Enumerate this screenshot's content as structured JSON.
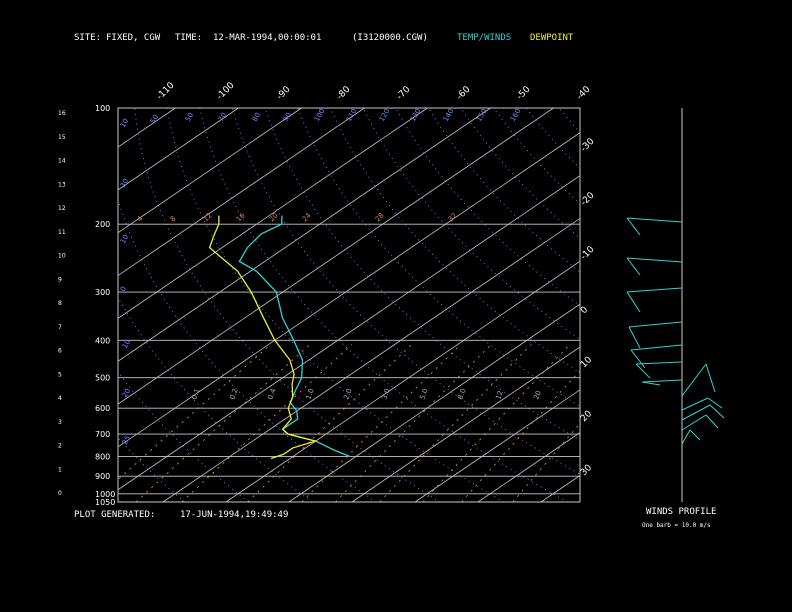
{
  "header": {
    "site_label": "SITE:",
    "site_value": "FIXED, CGW",
    "time_label": "TIME:",
    "time_value": "12-MAR-1994,00:00:01",
    "file": "(I3120000.CGW)",
    "legend_temp": "TEMP/WINDS",
    "legend_dew": "DEWPOINT"
  },
  "footer": {
    "generated_label": "PLOT GENERATED:",
    "generated_value": "17-JUN-1994,19:49:49"
  },
  "winds": {
    "title": "WINDS PROFILE",
    "note": "One barb = 10.0 m/s"
  },
  "colors": {
    "temp": "#2fd3d3",
    "dewpoint": "#f0f030",
    "grid": "#c8c8c8",
    "dry_adiabat": "#6a8cff",
    "mixing_ratio": "#d8805a"
  },
  "chart_data": {
    "type": "line",
    "subtype": "skew-t log-p diagram",
    "pressure_ticks": [
      "100",
      "200",
      "300",
      "400",
      "500",
      "600",
      "700",
      "800",
      "900",
      "1000",
      "1050"
    ],
    "pressure_values": [
      100,
      200,
      300,
      400,
      500,
      600,
      700,
      800,
      900,
      1000,
      1050
    ],
    "height_ticks": [
      "16",
      "15",
      "14",
      "13",
      "12",
      "11",
      "10",
      "9",
      "8",
      "7",
      "6",
      "5",
      "4",
      "3",
      "2",
      "1",
      "0"
    ],
    "temp_top_ticks": [
      "-110",
      "-100",
      "-90",
      "-80",
      "-70",
      "-60",
      "-50",
      "-40"
    ],
    "temp_side_ticks": [
      "-30",
      "-20",
      "-10",
      "0",
      "10",
      "20",
      "30"
    ],
    "dry_adiabat_labels": [
      "10",
      "50",
      "50",
      "70",
      "80",
      "90",
      "100",
      "110",
      "120",
      "130",
      "140",
      "150",
      "160",
      "30",
      "10",
      "0",
      "10",
      "20",
      "25"
    ],
    "mixing_ratio_labels": [
      "0.1",
      "0.2",
      "0.4",
      "1.0",
      "2.0",
      "3.0",
      "5.0",
      "8.0",
      "12",
      "20"
    ],
    "top_row_labels": [
      "4",
      "8",
      "12",
      "16",
      "20",
      "24",
      "28",
      "32"
    ],
    "temperature": [
      {
        "p": 800,
        "t": -11
      },
      {
        "p": 770,
        "t": -15
      },
      {
        "p": 730,
        "t": -20
      },
      {
        "p": 700,
        "t": -26
      },
      {
        "p": 680,
        "t": -28
      },
      {
        "p": 640,
        "t": -28
      },
      {
        "p": 610,
        "t": -30
      },
      {
        "p": 580,
        "t": -33
      },
      {
        "p": 540,
        "t": -35
      },
      {
        "p": 500,
        "t": -37
      },
      {
        "p": 450,
        "t": -41
      },
      {
        "p": 400,
        "t": -47
      },
      {
        "p": 350,
        "t": -54
      },
      {
        "p": 300,
        "t": -61
      },
      {
        "p": 265,
        "t": -69
      },
      {
        "p": 250,
        "t": -74
      },
      {
        "p": 230,
        "t": -76
      },
      {
        "p": 212,
        "t": -77
      },
      {
        "p": 200,
        "t": -76
      },
      {
        "p": 190,
        "t": -78
      }
    ],
    "dewpoint": [
      {
        "p": 810,
        "t": -23
      },
      {
        "p": 790,
        "t": -22
      },
      {
        "p": 760,
        "t": -22
      },
      {
        "p": 730,
        "t": -20
      },
      {
        "p": 700,
        "t": -26
      },
      {
        "p": 680,
        "t": -28
      },
      {
        "p": 640,
        "t": -29
      },
      {
        "p": 600,
        "t": -32
      },
      {
        "p": 560,
        "t": -34
      },
      {
        "p": 520,
        "t": -37
      },
      {
        "p": 490,
        "t": -39
      },
      {
        "p": 450,
        "t": -43
      },
      {
        "p": 400,
        "t": -50
      },
      {
        "p": 350,
        "t": -57
      },
      {
        "p": 300,
        "t": -65
      },
      {
        "p": 265,
        "t": -72
      },
      {
        "p": 240,
        "t": -79
      },
      {
        "p": 230,
        "t": -82
      },
      {
        "p": 215,
        "t": -84
      },
      {
        "p": 200,
        "t": -86
      },
      {
        "p": 190,
        "t": -88
      }
    ],
    "ylim": [
      1050,
      100
    ],
    "xlim": [
      -110,
      40
    ],
    "grid": true
  }
}
